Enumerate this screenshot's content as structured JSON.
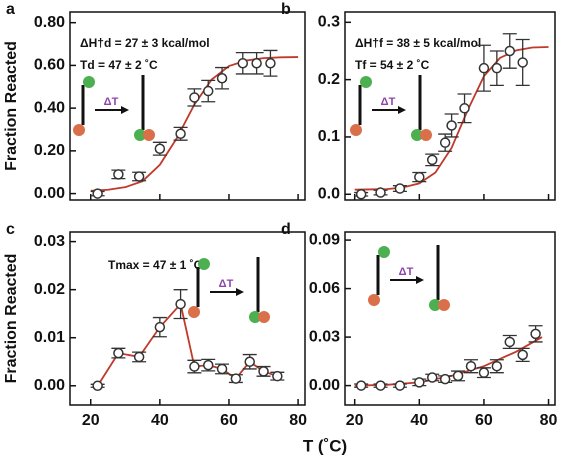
{
  "xlabel": "T (˚C)",
  "chart_data": [
    {
      "type": "scatter",
      "panel": "a",
      "ylabel": "Fraction Reacted",
      "annotations": [
        "ΔH†d = 27 ± 3 kcal/mol",
        "Td = 47 ± 2 ˚C"
      ],
      "arrow_label": "ΔT",
      "xlim": [
        14,
        82
      ],
      "ylim": [
        -0.03,
        0.85
      ],
      "xticks": [
        20,
        40,
        60,
        80
      ],
      "yticks": [
        {
          "value": 0,
          "label": "0.00"
        },
        {
          "value": 0.2,
          "label": "0.20"
        },
        {
          "value": 0.4,
          "label": "0.40"
        },
        {
          "value": 0.6,
          "label": "0.60"
        },
        {
          "value": 0.8,
          "label": "0.80"
        }
      ],
      "points": {
        "color": "#333333",
        "x": [
          22,
          28,
          34,
          40,
          46,
          50,
          54,
          58,
          64,
          68,
          72
        ],
        "values": [
          0.0,
          0.09,
          0.08,
          0.21,
          0.28,
          0.45,
          0.48,
          0.54,
          0.61,
          0.61,
          0.61
        ],
        "errors": [
          0.01,
          0.02,
          0.02,
          0.03,
          0.03,
          0.04,
          0.05,
          0.05,
          0.05,
          0.05,
          0.06
        ]
      },
      "fit": {
        "color": "#c0392b",
        "x": [
          20,
          25,
          30,
          35,
          40,
          45,
          50,
          55,
          60,
          65,
          70,
          75,
          80
        ],
        "values": [
          0.013,
          0.018,
          0.03,
          0.058,
          0.135,
          0.262,
          0.417,
          0.534,
          0.597,
          0.623,
          0.634,
          0.638,
          0.639
        ]
      }
    },
    {
      "type": "scatter",
      "panel": "b",
      "annotations": [
        "ΔH†f = 38 ± 5 kcal/mol",
        "Tf = 54 ± 2 ˚C"
      ],
      "arrow_label": "ΔT",
      "xlim": [
        17,
        82
      ],
      "ylim": [
        -0.01,
        0.318
      ],
      "xticks": [
        20,
        40,
        60,
        80
      ],
      "yticks": [
        {
          "value": 0,
          "label": "0.0"
        },
        {
          "value": 0.1,
          "label": "0.1"
        },
        {
          "value": 0.2,
          "label": "0.2"
        },
        {
          "value": 0.3,
          "label": "0.3"
        }
      ],
      "points": {
        "color": "#333333",
        "x": [
          22,
          28,
          34,
          40,
          44,
          48,
          50,
          54,
          60,
          64,
          68,
          72
        ],
        "values": [
          0.0,
          0.003,
          0.01,
          0.03,
          0.06,
          0.09,
          0.12,
          0.15,
          0.22,
          0.22,
          0.25,
          0.23
        ],
        "errors": [
          0.003,
          0.004,
          0.005,
          0.008,
          0.01,
          0.015,
          0.02,
          0.025,
          0.04,
          0.03,
          0.03,
          0.04
        ]
      },
      "fit": {
        "color": "#c0392b",
        "x": [
          20,
          30,
          35,
          40,
          45,
          50,
          55,
          60,
          65,
          70,
          75,
          80
        ],
        "values": [
          0.008,
          0.009,
          0.012,
          0.019,
          0.038,
          0.081,
          0.147,
          0.206,
          0.238,
          0.251,
          0.256,
          0.257
        ]
      }
    },
    {
      "type": "line",
      "panel": "c",
      "ylabel": "Fraction Reacted",
      "annotations": [
        "Tmax = 47 ± 1 ˚C"
      ],
      "arrow_label": "ΔT",
      "xlim": [
        14,
        82
      ],
      "ylim": [
        -0.004,
        0.032
      ],
      "xticks": [
        20,
        40,
        60,
        80
      ],
      "yticks": [
        {
          "value": 0,
          "label": "0.00"
        },
        {
          "value": 0.01,
          "label": "0.01"
        },
        {
          "value": 0.02,
          "label": "0.02"
        },
        {
          "value": 0.03,
          "label": "0.03"
        }
      ],
      "points": {
        "color": "#333333",
        "x": [
          22,
          28,
          34,
          40,
          46,
          50,
          54,
          58,
          62,
          66,
          70,
          74
        ],
        "values": [
          0.0,
          0.0068,
          0.006,
          0.0122,
          0.017,
          0.004,
          0.0043,
          0.0035,
          0.0015,
          0.005,
          0.003,
          0.002
        ],
        "errors": [
          0.0003,
          0.001,
          0.001,
          0.002,
          0.003,
          0.0013,
          0.0012,
          0.001,
          0.0008,
          0.0015,
          0.001,
          0.0008
        ]
      },
      "fit": {
        "color": "#c0392b",
        "x": [
          22,
          28,
          34,
          40,
          46,
          50,
          54,
          58,
          62,
          66,
          70,
          74
        ],
        "values": [
          0.0,
          0.0068,
          0.006,
          0.0122,
          0.017,
          0.004,
          0.0043,
          0.0035,
          0.0015,
          0.005,
          0.003,
          0.002
        ]
      }
    },
    {
      "type": "scatter",
      "panel": "d",
      "arrow_label": "ΔT",
      "xlim": [
        17,
        82
      ],
      "ylim": [
        -0.012,
        0.095
      ],
      "xticks": [
        20,
        40,
        60,
        80
      ],
      "yticks": [
        {
          "value": 0,
          "label": "0.00"
        },
        {
          "value": 0.03,
          "label": "0.03"
        },
        {
          "value": 0.06,
          "label": "0.06"
        },
        {
          "value": 0.09,
          "label": "0.09"
        }
      ],
      "points": {
        "color": "#333333",
        "x": [
          22,
          28,
          34,
          40,
          44,
          48,
          52,
          56,
          60,
          64,
          68,
          72,
          76
        ],
        "values": [
          0.0,
          0.0,
          0.0,
          0.002,
          0.005,
          0.004,
          0.006,
          0.012,
          0.008,
          0.012,
          0.027,
          0.019,
          0.032
        ],
        "errors": [
          0.001,
          0.001,
          0.001,
          0.002,
          0.002,
          0.002,
          0.003,
          0.004,
          0.003,
          0.004,
          0.004,
          0.004,
          0.005
        ]
      },
      "fit": {
        "color": "#c0392b",
        "x": [
          20,
          30,
          40,
          50,
          60,
          70,
          78
        ],
        "values": [
          0.0,
          0.0005,
          0.002,
          0.006,
          0.012,
          0.021,
          0.03
        ]
      }
    }
  ]
}
